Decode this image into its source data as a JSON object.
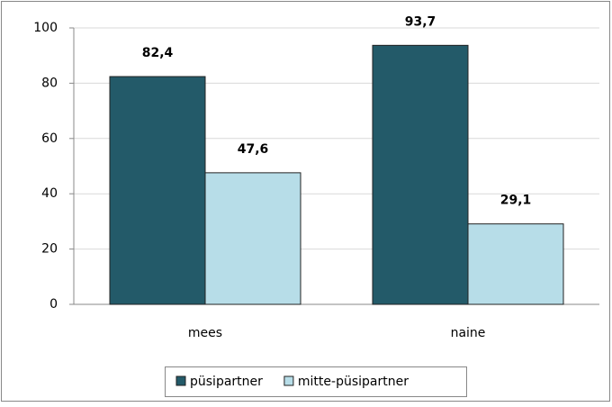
{
  "chart_data": {
    "type": "bar",
    "categories": [
      "mees",
      "naine"
    ],
    "series": [
      {
        "name": "püsipartner",
        "color": "#235a69",
        "values": [
          82.4,
          93.7
        ],
        "value_labels": [
          "82,4",
          "93,7"
        ]
      },
      {
        "name": "mitte-püsipartner",
        "color": "#b7dde8",
        "values": [
          47.6,
          29.1
        ],
        "value_labels": [
          "47,6",
          "29,1"
        ]
      }
    ],
    "ylim": [
      0,
      100
    ],
    "yticks": [
      0,
      20,
      40,
      60,
      80,
      100
    ],
    "grid": true,
    "legend": "bottom"
  }
}
